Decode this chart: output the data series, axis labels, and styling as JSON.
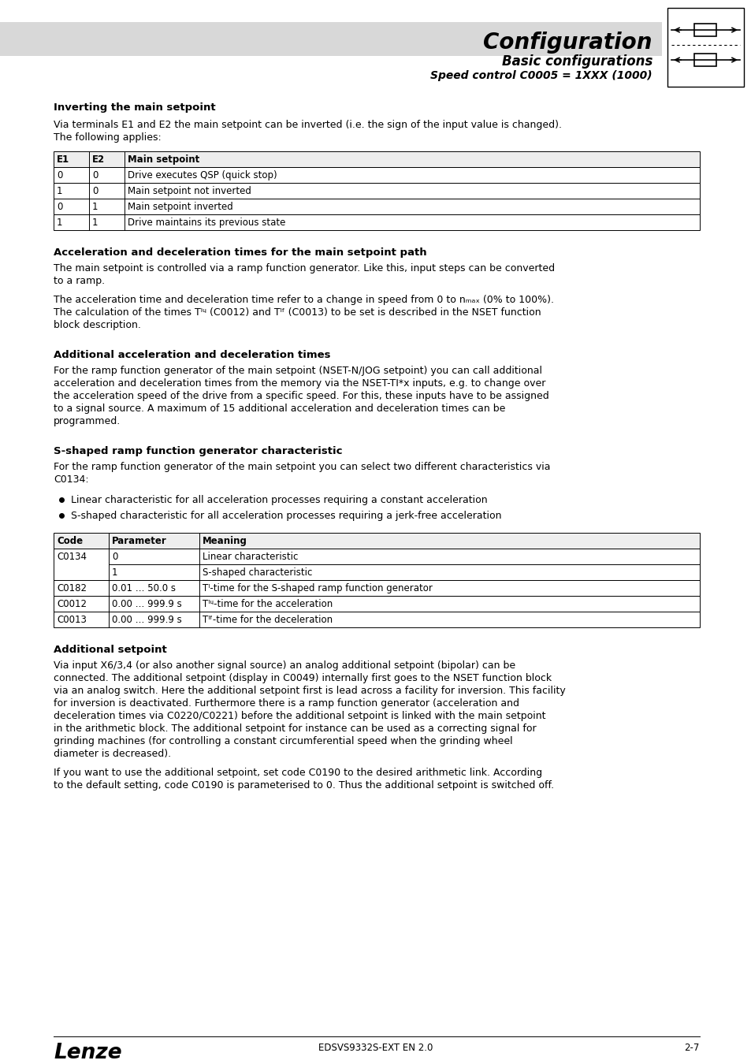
{
  "title": "Configuration",
  "subtitle": "Basic configurations",
  "subtitle2": "Speed control C0005 = 1XXX (1000)",
  "header_bg": "#d4d4d4",
  "page_bg": "#ffffff",
  "section1_heading": "Inverting the main setpoint",
  "table1_headers": [
    "E1",
    "E2",
    "Main setpoint"
  ],
  "table1_rows": [
    [
      "0",
      "0",
      "Drive executes QSP (quick stop)"
    ],
    [
      "1",
      "0",
      "Main setpoint not inverted"
    ],
    [
      "0",
      "1",
      "Main setpoint inverted"
    ],
    [
      "1",
      "1",
      "Drive maintains its previous state"
    ]
  ],
  "section2_heading": "Acceleration and deceleration times for the main setpoint path",
  "section3_heading": "Additional acceleration and deceleration times",
  "section4_heading": "S-shaped ramp function generator characteristic",
  "section4_bullet1": "Linear characteristic for all acceleration processes requiring a constant acceleration",
  "section4_bullet2": "S-shaped characteristic for all acceleration processes requiring a jerk-free acceleration",
  "table2_headers": [
    "Code",
    "Parameter",
    "Meaning"
  ],
  "table2_rows_special": [
    {
      "code": "C0134",
      "params": [
        "0",
        "1"
      ],
      "meanings": [
        "Linear characteristic",
        "S-shaped characteristic"
      ],
      "merged": true
    },
    {
      "code": "C0182",
      "params": [
        "0.01 … 50.0 s"
      ],
      "meanings": [
        "Tᴵ-time for the S-shaped ramp function generator"
      ],
      "merged": false
    },
    {
      "code": "C0012",
      "params": [
        "0.00 … 999.9 s"
      ],
      "meanings": [
        "Tᴵᶣ-time for the acceleration"
      ],
      "merged": false
    },
    {
      "code": "C0013",
      "params": [
        "0.00 … 999.9 s"
      ],
      "meanings": [
        "Tᴵᶠ-time for the deceleration"
      ],
      "merged": false
    }
  ],
  "section5_heading": "Additional setpoint",
  "footer_center": "EDSVS9332S-EXT EN 2.0",
  "footer_right": "2-7"
}
